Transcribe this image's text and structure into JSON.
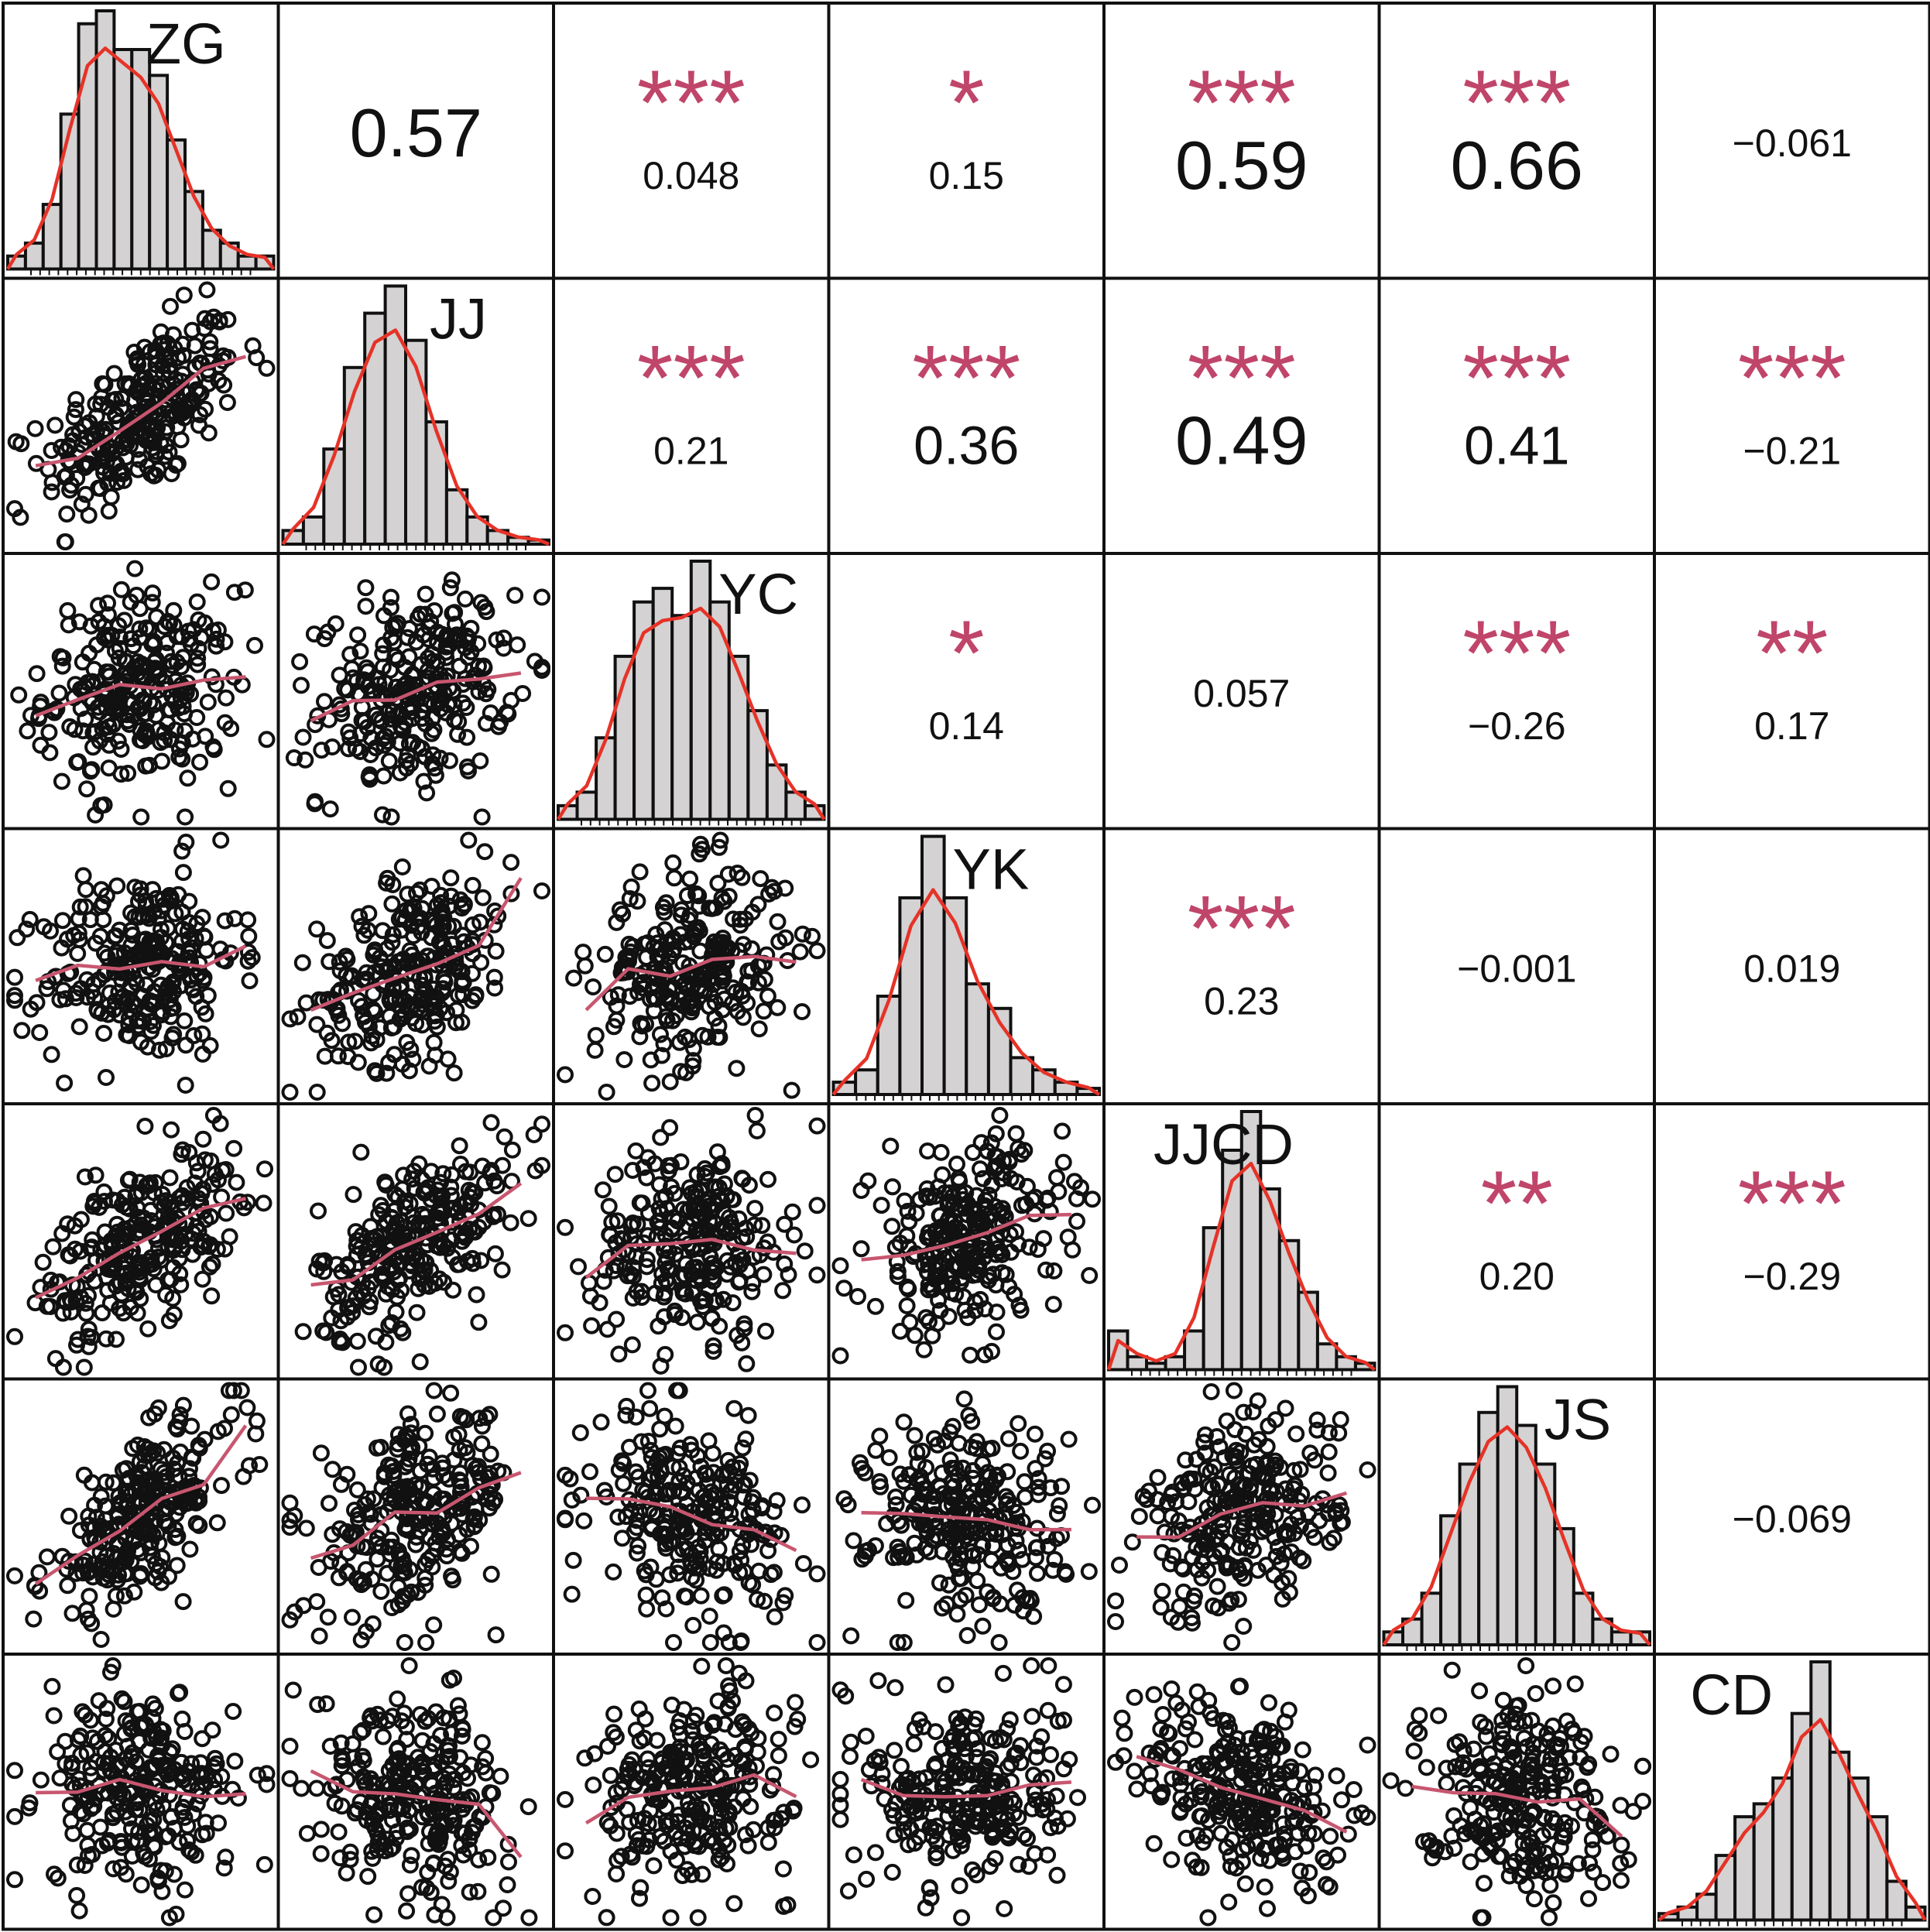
{
  "chart_data": {
    "type": "scatter-matrix",
    "variables": [
      "ZG",
      "JJ",
      "YC",
      "YK",
      "JJCD",
      "JS",
      "CD"
    ],
    "correlations": [
      {
        "row": 0,
        "col": 1,
        "r": "0.57",
        "stars": ""
      },
      {
        "row": 0,
        "col": 2,
        "r": "0.048",
        "stars": "***"
      },
      {
        "row": 0,
        "col": 3,
        "r": "0.15",
        "stars": "*"
      },
      {
        "row": 0,
        "col": 4,
        "r": "0.59",
        "stars": "***"
      },
      {
        "row": 0,
        "col": 5,
        "r": "0.66",
        "stars": "***"
      },
      {
        "row": 0,
        "col": 6,
        "r": "−0.061",
        "stars": ""
      },
      {
        "row": 1,
        "col": 2,
        "r": "0.21",
        "stars": "***"
      },
      {
        "row": 1,
        "col": 3,
        "r": "0.36",
        "stars": "***"
      },
      {
        "row": 1,
        "col": 4,
        "r": "0.49",
        "stars": "***"
      },
      {
        "row": 1,
        "col": 5,
        "r": "0.41",
        "stars": "***"
      },
      {
        "row": 1,
        "col": 6,
        "r": "−0.21",
        "stars": "***"
      },
      {
        "row": 2,
        "col": 3,
        "r": "0.14",
        "stars": "*"
      },
      {
        "row": 2,
        "col": 4,
        "r": "0.057",
        "stars": ""
      },
      {
        "row": 2,
        "col": 5,
        "r": "−0.26",
        "stars": "***"
      },
      {
        "row": 2,
        "col": 6,
        "r": "0.17",
        "stars": "**"
      },
      {
        "row": 3,
        "col": 4,
        "r": "0.23",
        "stars": "***"
      },
      {
        "row": 3,
        "col": 5,
        "r": "−0.001",
        "stars": ""
      },
      {
        "row": 3,
        "col": 6,
        "r": "0.019",
        "stars": ""
      },
      {
        "row": 4,
        "col": 5,
        "r": "0.20",
        "stars": "**"
      },
      {
        "row": 4,
        "col": 6,
        "r": "−0.29",
        "stars": "***"
      },
      {
        "row": 5,
        "col": 6,
        "r": "−0.069",
        "stars": ""
      }
    ],
    "histograms": {
      "ZG": [
        1,
        2,
        5,
        12,
        19,
        20,
        17,
        17,
        15,
        10,
        6,
        3,
        2,
        1,
        1
      ],
      "JJ": [
        1,
        2,
        7,
        13,
        17,
        19,
        15,
        9,
        4,
        2,
        1,
        0.5,
        0.3
      ],
      "YC": [
        1,
        2,
        6,
        12,
        16,
        17,
        15,
        19,
        16,
        12,
        8,
        4,
        2,
        1
      ],
      "YK": [
        1,
        2,
        8,
        16,
        21,
        16,
        9,
        7,
        3,
        2,
        1,
        0.5
      ],
      "JJCD": [
        3,
        1,
        0.5,
        1,
        3,
        11,
        17,
        20,
        14,
        10,
        6,
        2,
        1,
        0.5
      ],
      "JS": [
        1,
        2,
        4,
        10,
        14,
        18,
        20,
        17,
        14,
        9,
        4,
        2,
        1,
        1
      ],
      "CD": [
        0.5,
        1,
        2,
        5,
        8,
        9,
        11,
        16,
        20,
        13,
        11,
        8,
        3,
        1
      ]
    },
    "lower_panel_points": "circle markers, one per observation (values not readable)",
    "colors": {
      "stars": "#c0456a",
      "density_line": "#e63227",
      "smooth_line": "#c8566f",
      "bar_fill": "#d4d2d2"
    }
  }
}
